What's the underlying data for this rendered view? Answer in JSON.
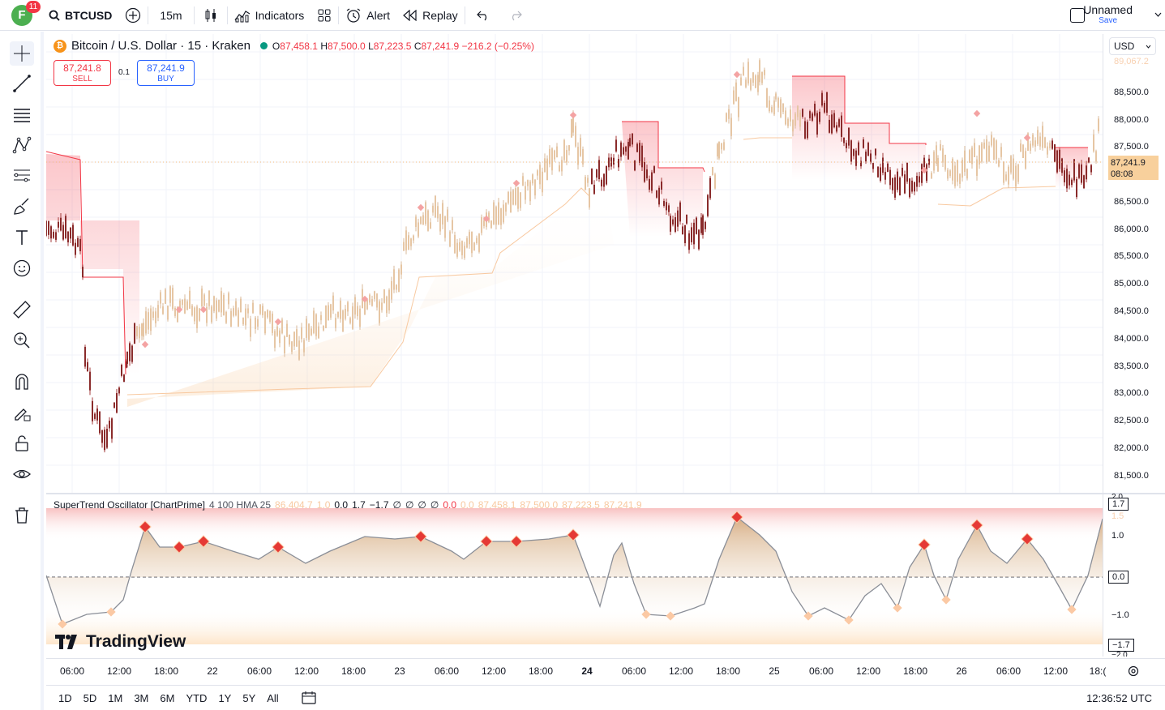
{
  "topbar": {
    "avatar_letter": "F",
    "notifications": "11",
    "symbol": "BTCUSD",
    "interval": "15m",
    "indicators_label": "Indicators",
    "alert_label": "Alert",
    "replay_label": "Replay",
    "layout_name": "Unnamed",
    "save_label": "Save"
  },
  "legend": {
    "title": "Bitcoin / U.S. Dollar · 15 · Kraken",
    "coin_glyph": "₿",
    "open_key": "O",
    "open": "87,458.1",
    "high_key": "H",
    "high": "87,500.0",
    "low_key": "L",
    "low": "87,223.5",
    "close_key": "C",
    "close": "87,241.9",
    "change": "−216.2 (−0.25%)"
  },
  "trade": {
    "sell_price": "87,241.8",
    "sell_label": "SELL",
    "spread": "0.1",
    "buy_price": "87,241.9",
    "buy_label": "BUY"
  },
  "price_axis": {
    "currency": "USD",
    "ticks": [
      "88,500.0",
      "88,000.0",
      "87,500.0",
      "86,500.0",
      "86,000.0",
      "85,500.0",
      "85,000.0",
      "84,500.0",
      "84,000.0",
      "83,500.0",
      "83,000.0",
      "82,500.0",
      "82,000.0",
      "81,500.0"
    ],
    "top_clipped": "89,067.2",
    "last_price": "87,241.9",
    "countdown": "08:08"
  },
  "oscillator": {
    "name": "SuperTrend Oscillator [ChartPrime]",
    "params": "4 100 HMA 25",
    "faded_values": [
      "86,404.7",
      "1.0"
    ],
    "values": [
      "0.0",
      "1.7",
      "−1.7",
      "∅",
      "∅",
      "∅",
      "∅"
    ],
    "red_value": "0.0",
    "faded_tail": [
      "0.0",
      "87,458.1",
      "87,500.0",
      "87,223.5",
      "87,241.9"
    ],
    "axis": {
      "top": "2.0",
      "upper_box": "1.7",
      "upper_faded": "1.5",
      "one": "1.0",
      "zero_box": "0.0",
      "minus_one": "−1.0",
      "lower_box": "−1.7",
      "bottom": "−2.0"
    }
  },
  "time_axis": [
    "06:00",
    "12:00",
    "18:00",
    "22",
    "06:00",
    "12:00",
    "18:00",
    "23",
    "06:00",
    "12:00",
    "18:00",
    "24",
    "06:00",
    "12:00",
    "18:00",
    "25",
    "06:00",
    "12:00",
    "18:00",
    "26",
    "06:00",
    "12:00",
    "18:("
  ],
  "ranges": [
    "1D",
    "5D",
    "1M",
    "3M",
    "6M",
    "YTD",
    "1Y",
    "5Y",
    "All"
  ],
  "clock": "12:36:52 UTC",
  "brand": "TradingView",
  "colors": {
    "bear": "#f23645",
    "bull": "#f5b97a",
    "accent": "#2962ff",
    "up": "#089981"
  }
}
